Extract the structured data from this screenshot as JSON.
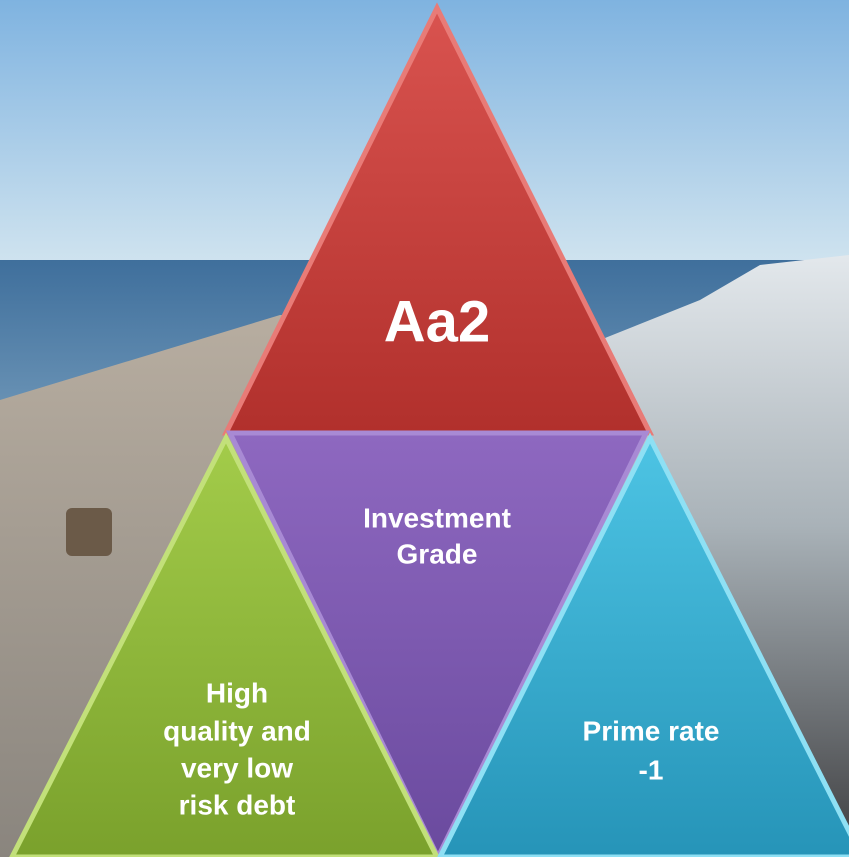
{
  "nodes": [
    {
      "lines": [
        "Aa2"
      ]
    },
    {
      "lines": [
        "Investment",
        "Grade"
      ]
    },
    {
      "lines": [
        "High",
        "quality and",
        "very low",
        "risk debt"
      ]
    },
    {
      "lines": [
        "Prime rate",
        "-1"
      ]
    }
  ]
}
